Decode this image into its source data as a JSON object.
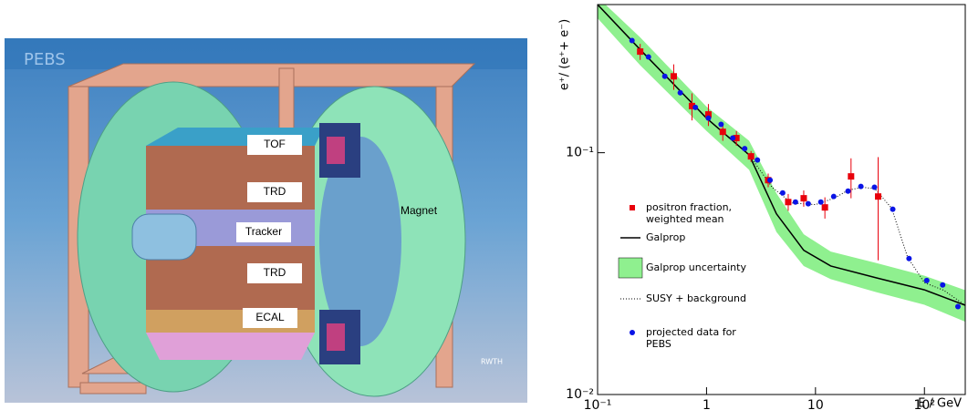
{
  "detector_image": {
    "title": "PEBS",
    "labels": [
      "TOF",
      "TRD",
      "Tracker",
      "TRD",
      "ECAL",
      "Magnet"
    ],
    "logo": "RWTH"
  },
  "chart_data": {
    "type": "scatter",
    "log_x": true,
    "log_y": true,
    "x_label": "E / GeV",
    "y_label": "e⁺/ (e⁺+ e⁻)",
    "xlim": [
      0.1,
      237
    ],
    "ylim": [
      0.01,
      0.41
    ],
    "xticks": [
      {
        "value": 0.1,
        "label": "10⁻¹"
      },
      1,
      10,
      {
        "value": 100,
        "label": "10²"
      }
    ],
    "yticks": [
      {
        "value": 0.01,
        "label": "10⁻²"
      },
      {
        "value": 0.1,
        "label": "10⁻¹"
      }
    ],
    "series": [
      {
        "name": "positron fraction, weighted mean",
        "style": "squares",
        "color": "#e8000b",
        "x": [
          0.246,
          0.5,
          0.735,
          1.04,
          1.41,
          1.88,
          2.56,
          3.68,
          5.62,
          7.8,
          12.2,
          21.2,
          37.6
        ],
        "values": [
          0.262,
          0.207,
          0.156,
          0.144,
          0.122,
          0.115,
          0.0966,
          0.077,
          0.0625,
          0.0648,
          0.0594,
          0.0798,
          0.0659
        ],
        "errors": [
          0.02,
          0.025,
          0.02,
          0.015,
          0.01,
          0.008,
          0.005,
          0.005,
          0.005,
          0.005,
          0.006,
          0.015,
          0.03
        ]
      },
      {
        "name": "Galprop",
        "style": "line",
        "color": "#000000",
        "x": [
          0.1,
          0.246,
          1,
          2.46,
          4.38,
          7.8,
          13.8,
          36,
          100,
          237
        ],
        "values": [
          0.41,
          0.267,
          0.139,
          0.098,
          0.0559,
          0.0395,
          0.034,
          0.0304,
          0.0271,
          0.0234
        ]
      },
      {
        "name": "Galprop uncertainty",
        "style": "band",
        "color": "#8ff08f",
        "x": [
          0.1,
          0.246,
          1,
          2.46,
          4.38,
          7.8,
          13.8,
          36,
          100,
          237
        ],
        "upper": [
          0.44,
          0.3,
          0.155,
          0.112,
          0.068,
          0.046,
          0.039,
          0.035,
          0.031,
          0.027
        ],
        "lower": [
          0.36,
          0.23,
          0.123,
          0.085,
          0.047,
          0.034,
          0.03,
          0.0265,
          0.0235,
          0.02
        ]
      },
      {
        "name": "SUSY + background",
        "style": "dotted",
        "color": "#000000",
        "x": [
          0.1,
          0.25,
          1,
          2.5,
          4,
          6,
          10,
          15,
          20,
          27,
          35,
          50,
          70,
          100,
          150,
          237
        ],
        "values": [
          0.41,
          0.265,
          0.139,
          0.097,
          0.072,
          0.062,
          0.061,
          0.065,
          0.07,
          0.072,
          0.071,
          0.059,
          0.037,
          0.029,
          0.027,
          0.0234
        ]
      },
      {
        "name": "projected data for PEBS",
        "style": "circles",
        "color": "#0a14e6",
        "x": [
          0.207,
          0.293,
          0.414,
          0.574,
          0.79,
          1.04,
          1.36,
          1.74,
          2.24,
          2.93,
          3.83,
          5.0,
          6.55,
          8.58,
          11.2,
          14.7,
          19.9,
          26.1,
          34.8,
          51.2,
          72.2,
          105,
          147,
          203
        ],
        "values": [
          0.291,
          0.249,
          0.207,
          0.177,
          0.154,
          0.139,
          0.131,
          0.115,
          0.104,
          0.0933,
          0.077,
          0.0682,
          0.0625,
          0.0615,
          0.0625,
          0.0659,
          0.0694,
          0.0725,
          0.072,
          0.0584,
          0.0365,
          0.0296,
          0.0284,
          0.0231
        ]
      }
    ]
  }
}
